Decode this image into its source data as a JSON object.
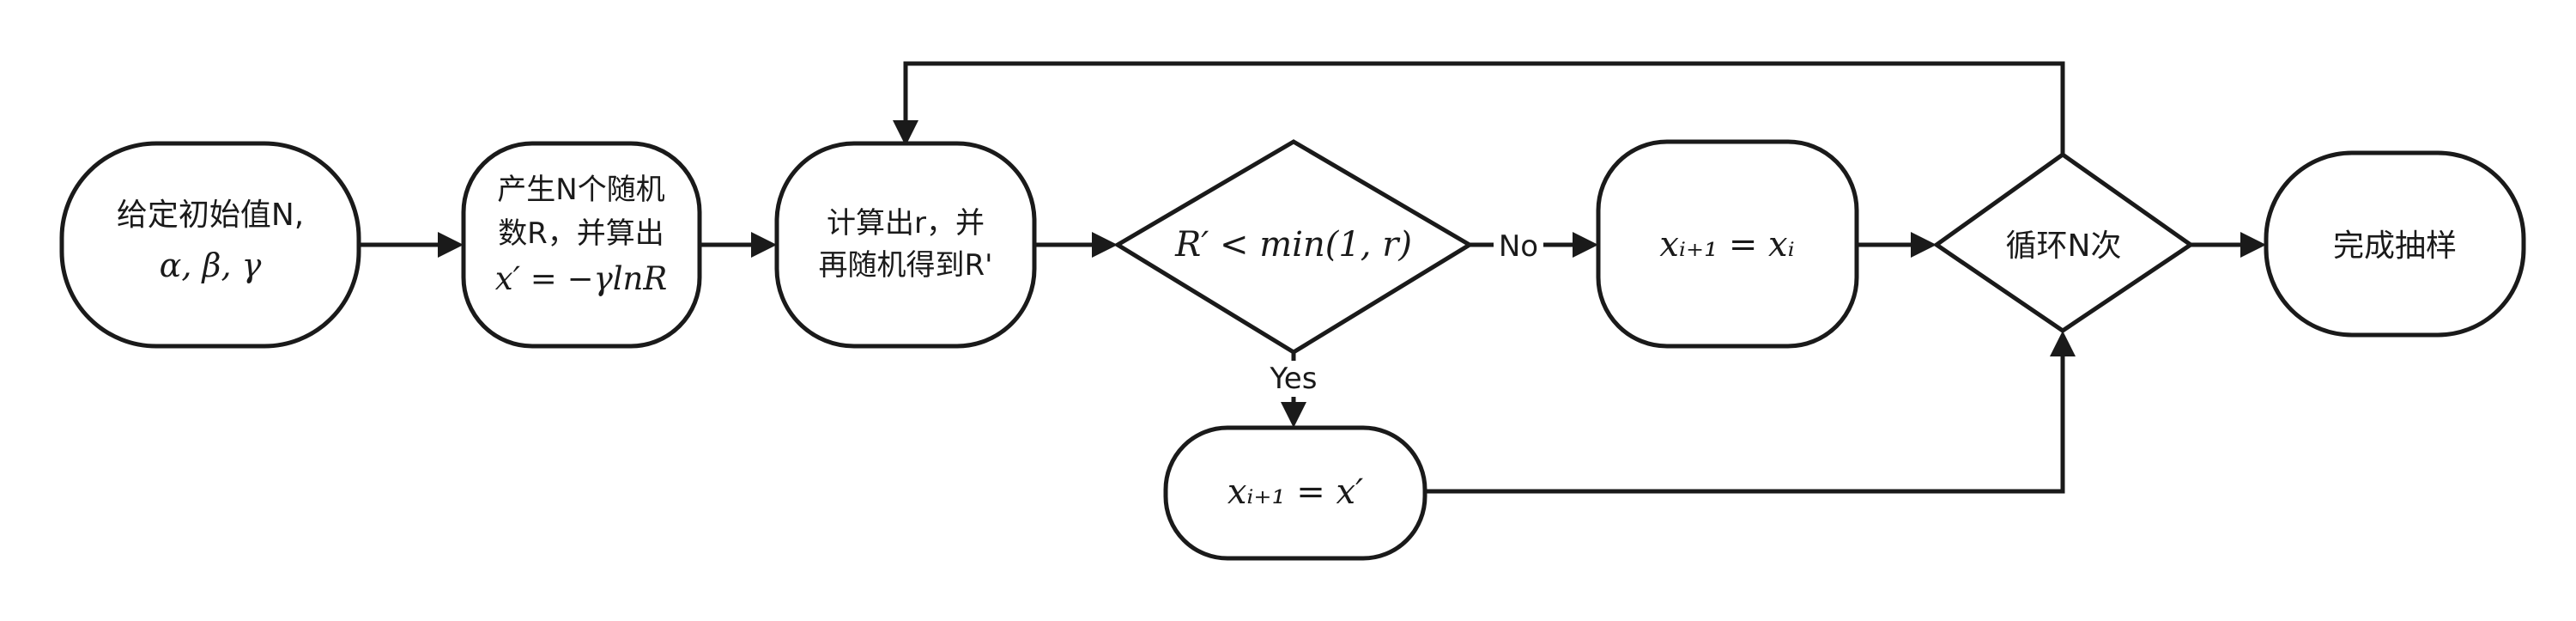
{
  "nodes": {
    "init": {
      "line1": "给定初始值N,",
      "line2": "α, β, γ"
    },
    "generate": {
      "line1": "产生N个随机",
      "line2": "数R，并算出",
      "line3": "x′ = −γlnR"
    },
    "compute": {
      "line1": "计算出r，并",
      "line2": "再随机得到R'"
    },
    "decision": {
      "text": "R′ < min(1, r)"
    },
    "no_branch": {
      "text": "xᵢ₊₁ = xᵢ"
    },
    "yes_branch": {
      "text": "xᵢ₊₁ = x′"
    },
    "loop": {
      "text": "循环N次"
    },
    "done": {
      "text": "完成抽样"
    }
  },
  "edge_labels": {
    "no": "No",
    "yes": "Yes"
  }
}
